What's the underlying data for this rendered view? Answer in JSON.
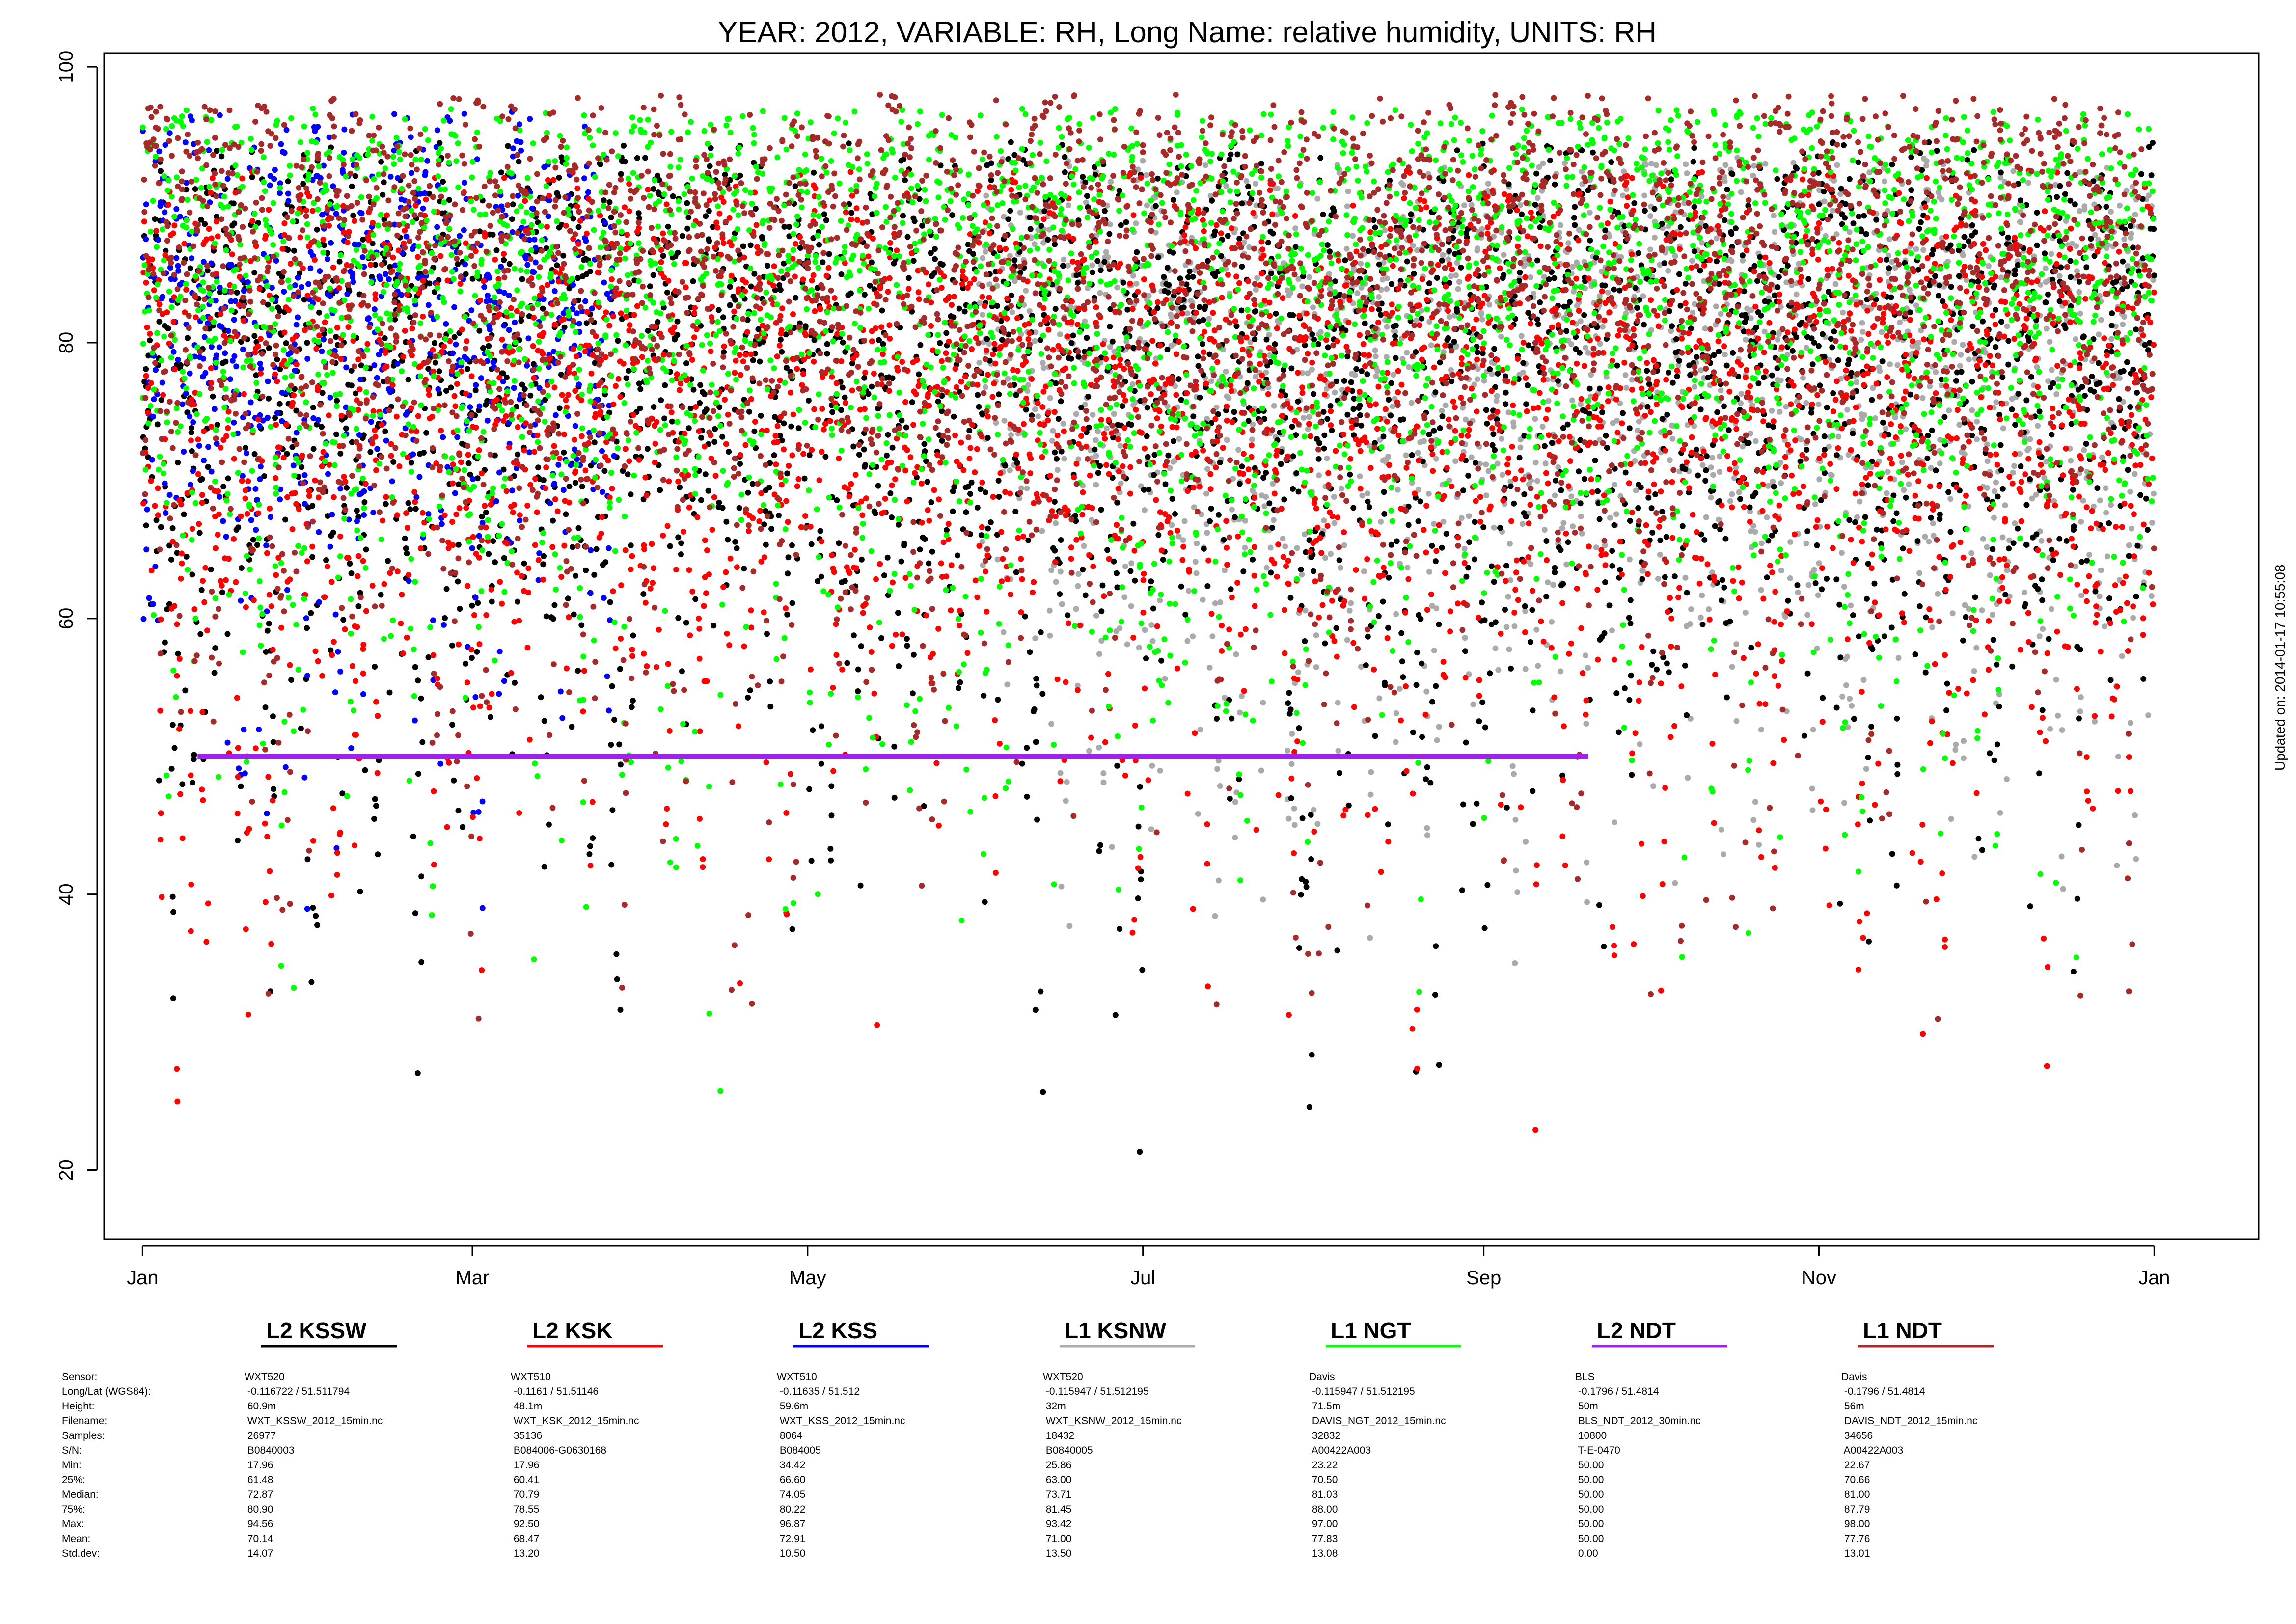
{
  "chart_data": {
    "type": "scatter",
    "title": "YEAR: 2012, VARIABLE: RH, Long Name: relative  humidity, UNITS: RH",
    "xlabel": "",
    "ylabel": "",
    "x_ticks": [
      "Jan",
      "Mar",
      "May",
      "Jul",
      "Sep",
      "Nov",
      "Jan"
    ],
    "x_tick_dates": [
      "2012-01-01",
      "2012-03-01",
      "2012-05-01",
      "2012-07-01",
      "2012-09-01",
      "2012-11-01",
      "2013-01-01"
    ],
    "y_ticks": [
      "20",
      "40",
      "60",
      "80",
      "100"
    ],
    "xlim": [
      "2011-12-25",
      "2013-01-20"
    ],
    "ylim": [
      15,
      101
    ],
    "grid": false,
    "legend_position": "bottom",
    "series": [
      {
        "name": "L2 KSSW",
        "color": "#000000",
        "date_range": [
          "2012-01-01",
          "2012-12-31"
        ],
        "min": 17.96,
        "q25": 61.48,
        "median": 72.87,
        "q75": 80.9,
        "max": 94.56,
        "mean": 70.14,
        "std": 14.07
      },
      {
        "name": "L2 KSK",
        "color": "#ff0000",
        "date_range": [
          "2012-01-01",
          "2012-12-31"
        ],
        "min": 17.96,
        "q25": 60.41,
        "median": 70.79,
        "q75": 78.55,
        "max": 92.5,
        "mean": 68.47,
        "std": 13.2
      },
      {
        "name": "L2 KSS",
        "color": "#0000ff",
        "date_range": [
          "2012-01-01",
          "2012-03-26"
        ],
        "min": 34.42,
        "q25": 66.6,
        "median": 74.05,
        "q75": 80.22,
        "max": 96.87,
        "mean": 72.91,
        "std": 10.5
      },
      {
        "name": "L1 KSNW",
        "color": "#aaaaaa",
        "date_range": [
          "2012-06-01",
          "2012-12-31"
        ],
        "min": 25.86,
        "q25": 63.0,
        "median": 73.71,
        "q75": 81.45,
        "max": 93.42,
        "mean": 71.0,
        "std": 13.5
      },
      {
        "name": "L1 NGT",
        "color": "#00ff00",
        "date_range": [
          "2012-01-01",
          "2012-12-31"
        ],
        "min": 23.22,
        "q25": 70.5,
        "median": 81.03,
        "q75": 88.0,
        "max": 97.0,
        "mean": 77.83,
        "std": 13.08
      },
      {
        "name": "L2 NDT",
        "color": "#a020f0",
        "date_range": [
          "2012-01-11",
          "2012-09-20"
        ],
        "min": 50.0,
        "q25": 50.0,
        "median": 50.0,
        "q75": 50.0,
        "max": 50.0,
        "mean": 50.0,
        "std": 0.0
      },
      {
        "name": "L1 NDT",
        "color": "#a52a2a",
        "date_range": [
          "2012-01-01",
          "2012-12-31"
        ],
        "min": 22.67,
        "q25": 70.66,
        "median": 81.0,
        "q75": 87.79,
        "max": 98.0,
        "mean": 77.76,
        "std": 13.01
      }
    ]
  },
  "stats": {
    "row_labels": [
      "Sensor:",
      "Long/Lat (WGS84):",
      "Height:",
      "Filename:",
      "Samples:",
      "S/N:",
      "Min:",
      "25%:",
      "Median:",
      "75%:",
      "Max:",
      "Mean:",
      "Std.dev:"
    ],
    "columns": [
      {
        "legend": "L2 KSSW",
        "color": "#000000",
        "values": [
          "WXT520",
          " -0.116722 / 51.511794",
          " 60.9m",
          " WXT_KSSW_2012_15min.nc",
          " 26977",
          " B0840003",
          " 17.96",
          " 61.48",
          " 72.87",
          " 80.90",
          " 94.56",
          " 70.14",
          " 14.07"
        ]
      },
      {
        "legend": "L2 KSK",
        "color": "#ff0000",
        "values": [
          "WXT510",
          " -0.1161 / 51.51146",
          " 48.1m",
          " WXT_KSK_2012_15min.nc",
          " 35136",
          " B084006-G0630168",
          " 17.96",
          " 60.41",
          " 70.79",
          " 78.55",
          " 92.50",
          " 68.47",
          " 13.20"
        ]
      },
      {
        "legend": "L2 KSS",
        "color": "#0000ff",
        "values": [
          "WXT510",
          " -0.11635 / 51.512",
          " 59.6m",
          " WXT_KSS_2012_15min.nc",
          " 8064",
          " B084005",
          " 34.42",
          " 66.60",
          " 74.05",
          " 80.22",
          " 96.87",
          " 72.91",
          " 10.50"
        ]
      },
      {
        "legend": "L1 KSNW",
        "color": "#aaaaaa",
        "values": [
          "WXT520",
          " -0.115947 / 51.512195",
          " 32m",
          " WXT_KSNW_2012_15min.nc",
          " 18432",
          " B0840005",
          " 25.86",
          " 63.00",
          " 73.71",
          " 81.45",
          " 93.42",
          " 71.00",
          " 13.50"
        ]
      },
      {
        "legend": "L1 NGT",
        "color": "#00ff00",
        "values": [
          "Davis",
          " -0.115947 / 51.512195",
          " 71.5m",
          " DAVIS_NGT_2012_15min.nc",
          " 32832",
          " A00422A003",
          " 23.22",
          " 70.50",
          " 81.03",
          " 88.00",
          " 97.00",
          " 77.83",
          " 13.08"
        ]
      },
      {
        "legend": "L2 NDT",
        "color": "#a020f0",
        "values": [
          "BLS",
          " -0.1796 / 51.4814",
          " 50m",
          " BLS_NDT_2012_30min.nc",
          " 10800",
          " T-E-0470",
          " 50.00",
          " 50.00",
          " 50.00",
          " 50.00",
          " 50.00",
          " 50.00",
          " 0.00"
        ]
      },
      {
        "legend": "L1 NDT",
        "color": "#a52a2a",
        "values": [
          "Davis",
          " -0.1796 / 51.4814",
          " 56m",
          " DAVIS_NDT_2012_15min.nc",
          " 34656",
          " A00422A003",
          " 22.67",
          " 70.66",
          " 81.00",
          " 87.79",
          " 98.00",
          " 77.76",
          " 13.01"
        ]
      }
    ]
  },
  "updated_text": "Updated on: 2014-01-17 10:55:08"
}
